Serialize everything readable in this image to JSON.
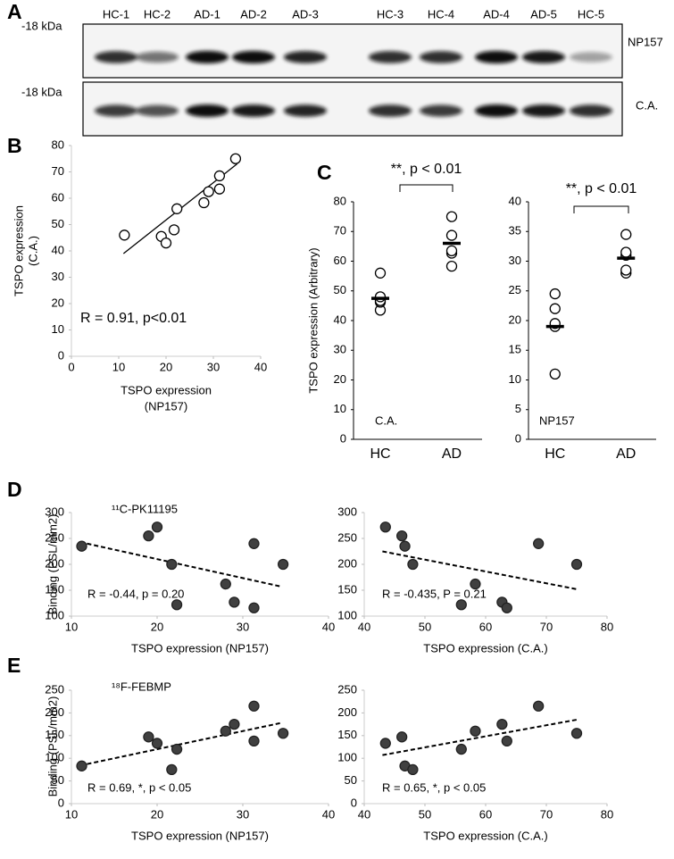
{
  "blot": {
    "panel": "A",
    "lanes": [
      "HC-1",
      "HC-2",
      "AD-1",
      "AD-2",
      "AD-3",
      "HC-3",
      "HC-4",
      "AD-4",
      "AD-5",
      "HC-5"
    ],
    "rows": [
      {
        "marker": "-18 kDa",
        "label": "NP157"
      },
      {
        "marker": "-18 kDa",
        "label": "C.A."
      }
    ]
  },
  "chart_data": [
    {
      "type": "scatter",
      "panel": "B",
      "xlabel": [
        "TSPO expression",
        "(NP157)"
      ],
      "ylabel": [
        "TSPO expression",
        "(C.A.)"
      ],
      "annotation": "R = 0.91, p<0.01",
      "color": "#000000",
      "filled": false,
      "x": [
        11.2,
        19,
        20,
        21.7,
        22.3,
        28,
        29,
        31.3,
        31.3,
        34.7
      ],
      "values": [
        46,
        45.5,
        43,
        48,
        56,
        58.3,
        62.5,
        63.5,
        68.5,
        75
      ],
      "trendline": {
        "x": [
          11,
          35
        ],
        "y": [
          39,
          73
        ]
      },
      "dashed": false,
      "xlim": [
        0,
        40
      ],
      "xticks": [
        0,
        10,
        20,
        30,
        40
      ],
      "ylim": [
        0,
        80
      ],
      "yticks": [
        0,
        10,
        20,
        30,
        40,
        50,
        60,
        70,
        80
      ]
    },
    {
      "type": "strip",
      "panel": "C",
      "ylabel": [
        "TSPO expression (Arbitrary)"
      ],
      "annotation": "C.A.",
      "significance": "**, p < 0.01",
      "categories": [
        "HC",
        "AD"
      ],
      "values": [
        [
          43.5,
          46.2,
          46.7,
          48,
          56
        ],
        [
          58.3,
          62.7,
          63.5,
          68.7,
          75
        ]
      ],
      "means": [
        47.5,
        66
      ],
      "color": "#000000",
      "filled": false,
      "ylim": [
        0,
        80
      ],
      "yticks": [
        0,
        10,
        20,
        30,
        40,
        50,
        60,
        70,
        80
      ]
    },
    {
      "type": "strip",
      "annotation": "NP157",
      "significance": "**, p < 0.01",
      "categories": [
        "HC",
        "AD"
      ],
      "values": [
        [
          11,
          19,
          19.5,
          22,
          24.5
        ],
        [
          28,
          28.5,
          31,
          31.5,
          34.5
        ]
      ],
      "means": [
        19,
        30.5
      ],
      "color": "#000000",
      "filled": false,
      "ylim": [
        0,
        40
      ],
      "yticks": [
        0,
        5,
        10,
        15,
        20,
        25,
        30,
        35,
        40
      ]
    },
    {
      "type": "scatter",
      "panel": "D",
      "title": "¹¹C-PK11195",
      "xlabel": [
        "TSPO expression (NP157)"
      ],
      "ylabel": [
        "Binding (PSL/mm2)"
      ],
      "annotation": "R = -0.44, p = 0.20",
      "color": "#404040",
      "filled": true,
      "x": [
        11.2,
        19,
        20,
        21.7,
        22.3,
        28,
        29,
        31.3,
        31.3,
        34.7
      ],
      "values": [
        235,
        255,
        272,
        200,
        122,
        162,
        127,
        240,
        116,
        200
      ],
      "trendline": {
        "x": [
          11,
          34.5
        ],
        "y": [
          243,
          157
        ]
      },
      "dashed": true,
      "xlim": [
        10,
        40
      ],
      "xticks": [
        10,
        20,
        30,
        40
      ],
      "ylim": [
        100,
        300
      ],
      "yticks": [
        100,
        150,
        200,
        250,
        300
      ]
    },
    {
      "type": "scatter",
      "xlabel": [
        "TSPO expression (C.A.)"
      ],
      "annotation": "R = -0.435, P = 0.21",
      "color": "#404040",
      "filled": true,
      "x": [
        43.5,
        46.2,
        46.7,
        48,
        56,
        58.3,
        62.7,
        63.5,
        68.7,
        75
      ],
      "values": [
        272,
        255,
        235,
        200,
        122,
        162,
        127,
        116,
        240,
        200
      ],
      "trendline": {
        "x": [
          43,
          75
        ],
        "y": [
          225,
          152
        ]
      },
      "dashed": true,
      "xlim": [
        40,
        80
      ],
      "xticks": [
        40,
        50,
        60,
        70,
        80
      ],
      "ylim": [
        100,
        300
      ],
      "yticks": [
        100,
        150,
        200,
        250,
        300
      ]
    },
    {
      "type": "scatter",
      "panel": "E",
      "title": "¹⁸F-FEBMP",
      "xlabel": [
        "TSPO expression (NP157)"
      ],
      "ylabel": [
        "Binding (PSL/mm2)"
      ],
      "annotation": "R = 0.69, *, p < 0.05",
      "color": "#404040",
      "filled": true,
      "x": [
        11.2,
        19,
        20,
        21.7,
        22.3,
        28,
        29,
        31.3,
        31.3,
        34.7
      ],
      "values": [
        83,
        147,
        133,
        75,
        120,
        160,
        175,
        215,
        138,
        155
      ],
      "trendline": {
        "x": [
          11,
          34.5
        ],
        "y": [
          84,
          178
        ]
      },
      "dashed": true,
      "xlim": [
        10,
        40
      ],
      "xticks": [
        10,
        20,
        30,
        40
      ],
      "ylim": [
        0,
        250
      ],
      "yticks": [
        0,
        50,
        100,
        150,
        200,
        250
      ]
    },
    {
      "type": "scatter",
      "xlabel": [
        "TSPO expression (C.A.)"
      ],
      "annotation": "R = 0.65, *, p < 0.05",
      "color": "#404040",
      "filled": true,
      "x": [
        43.5,
        46.2,
        46.7,
        48,
        56,
        58.3,
        62.7,
        63.5,
        68.7,
        75
      ],
      "values": [
        133,
        147,
        83,
        75,
        120,
        160,
        175,
        138,
        215,
        155
      ],
      "trendline": {
        "x": [
          43,
          75
        ],
        "y": [
          107,
          185
        ]
      },
      "dashed": true,
      "xlim": [
        40,
        80
      ],
      "xticks": [
        40,
        50,
        60,
        70,
        80
      ],
      "ylim": [
        0,
        250
      ],
      "yticks": [
        0,
        50,
        100,
        150,
        200,
        250
      ]
    }
  ]
}
